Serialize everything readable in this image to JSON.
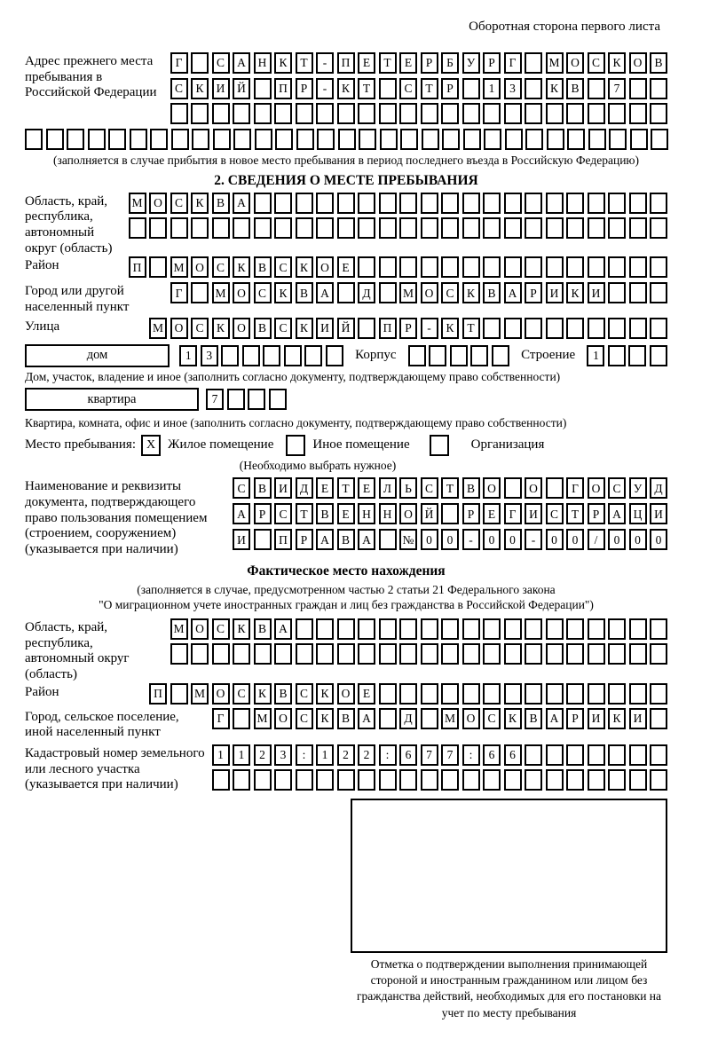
{
  "colors": {
    "ink": "#000000",
    "paper": "#ffffff"
  },
  "header_note": "Оборотная сторона первого листа",
  "prev_address": {
    "label": "Адрес прежнего места пребывания в Российской Федерации",
    "rows": [
      {
        "text": "Г САНКТ-ПЕТЕРБУРГ МОСКОВ",
        "n": 24
      },
      {
        "text": "СКИЙ ПР-КТ СТР 13 КВ 7",
        "n": 24
      },
      {
        "text": "",
        "n": 24
      },
      {
        "text": "",
        "n": 31
      }
    ],
    "note": "(заполняется в случае прибытия в новое место пребывания в период последнего въезда в Российскую Федерацию)"
  },
  "section2": {
    "title": "2. СВЕДЕНИЯ О МЕСТЕ ПРЕБЫВАНИЯ",
    "region": {
      "label": "Область, край, республика, автономный округ (область)",
      "rows": [
        {
          "text": "МОСКВА",
          "n": 26
        },
        {
          "text": "",
          "n": 26
        }
      ]
    },
    "district": {
      "label": "Район",
      "row": {
        "text": "П МОСКВСКОЕ",
        "n": 26
      }
    },
    "city": {
      "label": "Город или другой населенный пункт",
      "row": {
        "text": "Г МОСКВА Д МОСКВАРИКИ",
        "n": 24
      }
    },
    "street": {
      "label": "Улица",
      "row": {
        "text": "МОСКОВСКИЙ ПР-КТ",
        "n": 25
      }
    },
    "house": {
      "box_label": "дом",
      "number": {
        "text": "13",
        "n": 8
      },
      "korpus_label": "Корпус",
      "korpus": {
        "text": "",
        "n": 5
      },
      "stroenie_label": "Строение",
      "stroenie": {
        "text": "1",
        "n": 4
      },
      "note": "Дом, участок, владение и иное (заполнить согласно документу, подтверждающему право собственности)"
    },
    "apartment": {
      "box_label": "квартира",
      "number": {
        "text": "7",
        "n": 4
      },
      "note": "Квартира, комната, офис и иное (заполнить согласно документу, подтверждающему право собственности)"
    },
    "stay_type": {
      "label": "Место пребывания:",
      "options": [
        {
          "mark": "X",
          "label": "Жилое помещение"
        },
        {
          "mark": "",
          "label": "Иное помещение"
        },
        {
          "mark": "",
          "label": "Организация"
        }
      ],
      "note": "(Необходимо выбрать нужное)"
    },
    "document": {
      "label": "Наименование и реквизиты документа, подтверждающего право пользования помещением (строением, сооружением) (указывается при наличии)",
      "rows": [
        {
          "text": "СВИДЕТЕЛЬСТВО О ГОСУД",
          "n": 21
        },
        {
          "text": "АРСТВЕННОЙ РЕГИСТРАЦИ",
          "n": 21
        },
        {
          "text": "И ПРАВА №00-00-00/000",
          "n": 21
        }
      ]
    }
  },
  "actual": {
    "title": "Фактическое место нахождения",
    "note_line1": "(заполняется в случае, предусмотренном частью 2 статьи 21 Федерального закона",
    "note_line2": "\"О миграционном учете иностранных граждан и лиц без гражданства в Российской Федерации\")",
    "region": {
      "label": "Область, край, республика, автономный округ (область)",
      "rows": [
        {
          "text": "МОСКВА",
          "n": 24
        },
        {
          "text": "",
          "n": 24
        }
      ]
    },
    "district": {
      "label": "Район",
      "row": {
        "text": "П МОСКВСКОЕ",
        "n": 25
      }
    },
    "city": {
      "label": "Город, сельское поселение, иной населенный пункт",
      "row": {
        "text": "Г МОСКВА Д МОСКВАРИКИ",
        "n": 22
      }
    },
    "cadastral": {
      "label": "Кадастровый номер земельного или лесного участка (указывается при наличии)",
      "rows": [
        {
          "text": "1123:122:677:66",
          "n": 22
        },
        {
          "text": "",
          "n": 22
        }
      ]
    }
  },
  "stamp": {
    "caption": "Отметка о подтверждении выполнения принимающей стороной и иностранным гражданином или лицом без гражданства действий, необходимых для его постановки на учет по месту пребывания"
  }
}
